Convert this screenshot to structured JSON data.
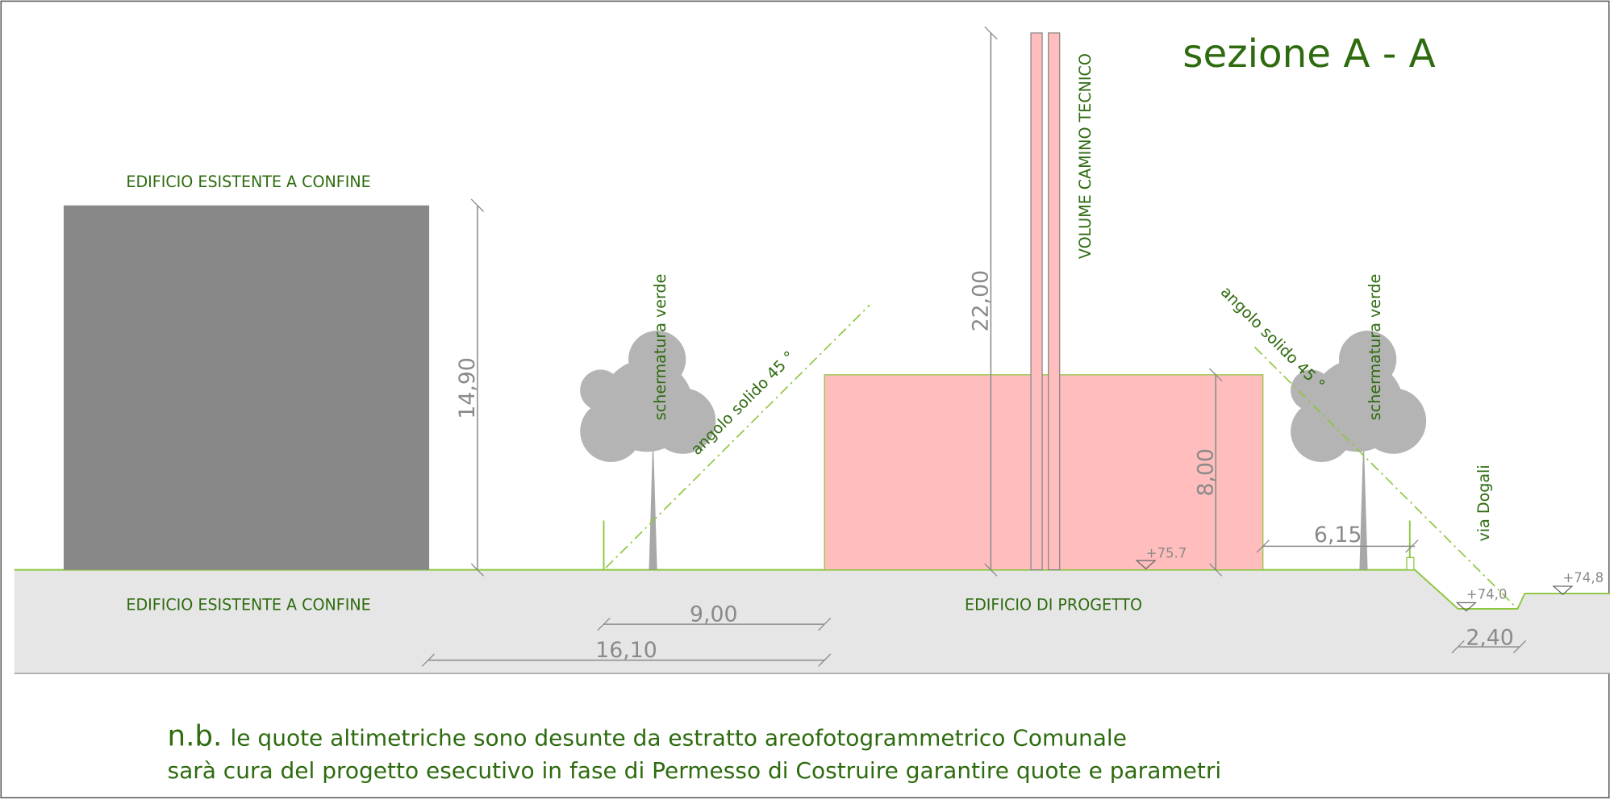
{
  "title": "sezione A - A",
  "labels": {
    "existing_top": "EDIFICIO ESISTENTE A CONFINE",
    "existing_bottom": "EDIFICIO ESISTENTE A CONFINE",
    "project": "EDIFICIO DI PROGETTO",
    "chimney": "VOLUME CAMINO TECNICO",
    "screen_left": "schermatura verde",
    "screen_right": "schermatura verde",
    "angle_left": "angolo solido 45 °",
    "angle_right": "angolo solido 45 °",
    "street": "via Dogali"
  },
  "dimensions": [
    "14,90",
    "22,00",
    "8,00",
    "6,15",
    "9,00",
    "16,10",
    "2,40"
  ],
  "levels": [
    "+75.7",
    "+74,0",
    "+74,8"
  ],
  "note": {
    "prefix": "n.b.",
    "line1": "le quote altimetriche sono desunte da estratto areofotogrammetrico Comunale",
    "line2": "sarà cura del progetto esecutivo in fase di Permesso di Costruire garantire quote e parametri"
  }
}
